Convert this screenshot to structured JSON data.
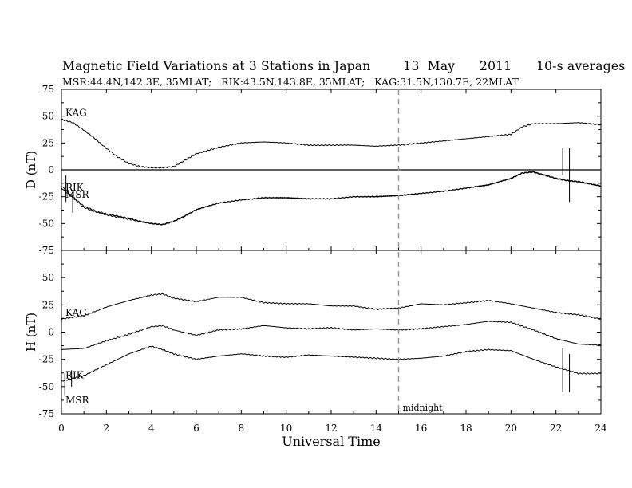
{
  "chart_data": {
    "type": "line",
    "title": "Magnetic Field Variations at 3 Stations in Japan        13  May      2011      10-s averages",
    "subtitle": "MSR:44.4N,142.3E, 35MLAT;   RIK:43.5N,143.8E, 35MLAT;   KAG:31.5N,130.7E, 22MLAT",
    "xlabel": "Universal Time",
    "xlim": [
      0,
      24
    ],
    "x_ticks": [
      "0",
      "2",
      "4",
      "6",
      "8",
      "10",
      "12",
      "14",
      "16",
      "18",
      "20",
      "22",
      "24"
    ],
    "annotation": {
      "text": "midnight",
      "x": 15
    },
    "panels": [
      {
        "ylabel": "D (nT)",
        "ylim": [
          -75,
          75
        ],
        "y_ticks": [
          "75",
          "50",
          "25",
          "0",
          "-25",
          "-50",
          "-75"
        ],
        "zero_line": true,
        "series": [
          {
            "name": "KAG",
            "x": [
              0,
              0.5,
              1,
              1.5,
              2,
              2.5,
              3,
              3.5,
              4,
              4.5,
              5,
              5.5,
              6,
              7,
              8,
              9,
              10,
              11,
              12,
              13,
              14,
              15,
              16,
              17,
              18,
              19,
              20,
              20.5,
              21,
              22,
              23,
              24
            ],
            "y": [
              47,
              44,
              37,
              29,
              20,
              12,
              6,
              3,
              2,
              2,
              3,
              9,
              15,
              21,
              25,
              26,
              25,
              23,
              23,
              23,
              22,
              23,
              25,
              27,
              29,
              31,
              33,
              40,
              43,
              43,
              44,
              42
            ]
          },
          {
            "name": "RIK",
            "x": [
              0,
              0.5,
              1,
              1.5,
              2,
              2.5,
              3,
              3.5,
              4,
              4.5,
              5,
              5.5,
              6,
              7,
              8,
              9,
              10,
              11,
              12,
              13,
              14,
              15,
              16,
              17,
              18,
              19,
              20,
              20.5,
              21,
              21.5,
              22,
              22.5,
              23,
              23.5,
              24
            ],
            "y": [
              -15,
              -25,
              -34,
              -38,
              -41,
              -43,
              -45,
              -48,
              -50,
              -51,
              -48,
              -43,
              -37,
              -31,
              -28,
              -26,
              -26,
              -27,
              -27,
              -25,
              -25,
              -24,
              -22,
              -20,
              -17,
              -14,
              -8,
              -3,
              -2,
              -5,
              -8,
              -10,
              -11,
              -13,
              -15
            ]
          },
          {
            "name": "MSR",
            "x": [
              0,
              0.5,
              1,
              1.5,
              2,
              2.5,
              3,
              3.5,
              4,
              4.5,
              5,
              5.5,
              6,
              7,
              8,
              9,
              10,
              11,
              12,
              13,
              14,
              15,
              16,
              17,
              18,
              19,
              20,
              20.5,
              21,
              21.5,
              22,
              22.5,
              23,
              23.5,
              24
            ],
            "y": [
              -17,
              -26,
              -35,
              -39,
              -42,
              -44,
              -46,
              -48,
              -50,
              -51,
              -48,
              -43,
              -37,
              -31,
              -28,
              -26,
              -26,
              -27,
              -27,
              -25,
              -25,
              -24,
              -22,
              -20,
              -17,
              -14,
              -8,
              -3,
              -2,
              -5,
              -8,
              -10,
              -11,
              -13,
              -15
            ]
          }
        ]
      },
      {
        "ylabel": "H (nT)",
        "ylim": [
          -75,
          75
        ],
        "y_ticks": [
          "75",
          "50",
          "25",
          "0",
          "-25",
          "-50",
          "-75"
        ],
        "zero_line": false,
        "series": [
          {
            "name": "KAG",
            "x": [
              0,
              1,
              2,
              3,
              4,
              4.5,
              5,
              6,
              7,
              8,
              9,
              10,
              11,
              12,
              13,
              14,
              15,
              16,
              17,
              18,
              19,
              20,
              21,
              22,
              23,
              24
            ],
            "y": [
              12,
              15,
              23,
              29,
              34,
              35,
              31,
              28,
              32,
              32,
              27,
              26,
              26,
              24,
              24,
              21,
              22,
              26,
              25,
              27,
              29,
              26,
              22,
              18,
              16,
              12
            ]
          },
          {
            "name": "RIK",
            "x": [
              0,
              1,
              2,
              3,
              4,
              4.5,
              5,
              6,
              7,
              8,
              9,
              10,
              11,
              12,
              13,
              14,
              15,
              16,
              17,
              18,
              19,
              20,
              21,
              22,
              23,
              24
            ],
            "y": [
              -16,
              -15,
              -8,
              -2,
              5,
              6,
              2,
              -3,
              2,
              3,
              6,
              4,
              3,
              4,
              2,
              3,
              2,
              3,
              5,
              7,
              10,
              9,
              2,
              -6,
              -11,
              -12
            ]
          },
          {
            "name": "MSR",
            "x": [
              0,
              1,
              2,
              3,
              4,
              4.5,
              5,
              6,
              7,
              8,
              9,
              10,
              11,
              12,
              13,
              14,
              15,
              16,
              17,
              18,
              19,
              20,
              21,
              22,
              23,
              24
            ],
            "y": [
              -45,
              -40,
              -30,
              -20,
              -13,
              -16,
              -20,
              -25,
              -22,
              -20,
              -22,
              -23,
              -21,
              -22,
              -23,
              -24,
              -25,
              -24,
              -22,
              -18,
              -16,
              -17,
              -25,
              -32,
              -38,
              -38
            ]
          }
        ]
      }
    ]
  }
}
